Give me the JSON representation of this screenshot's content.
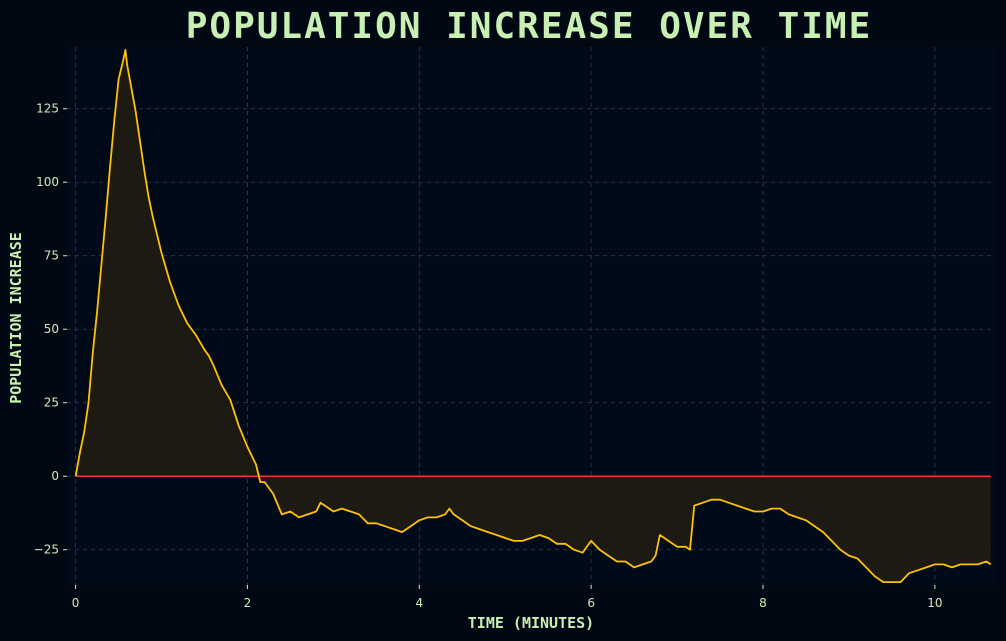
{
  "colors": {
    "background": "#000814",
    "plot_background": "#000a18",
    "grid": "#3a3f4a",
    "line": "#ffc107",
    "fill": "#1e1b12",
    "zero_line": "#e53935",
    "text": "#c8f0b4"
  },
  "chart_data": {
    "type": "area",
    "title": "POPULATION INCREASE OVER TIME",
    "xlabel": "TIME (MINUTES)",
    "ylabel": "POPULATION INCREASE",
    "xlim": [
      -0.1,
      10.7
    ],
    "ylim": [
      -37,
      146
    ],
    "xticks": [
      0,
      2,
      4,
      6,
      8,
      10
    ],
    "yticks": [
      -25,
      0,
      25,
      50,
      75,
      100,
      125
    ],
    "grid": true,
    "reference_line": 0,
    "series": [
      {
        "x": [
          0.0,
          0.05,
          0.1,
          0.15,
          0.2,
          0.25,
          0.3,
          0.35,
          0.4,
          0.45,
          0.5,
          0.55,
          0.58,
          0.6,
          0.65,
          0.7,
          0.75,
          0.8,
          0.85,
          0.9,
          0.95,
          1.0,
          1.1,
          1.2,
          1.3,
          1.4,
          1.5,
          1.55,
          1.6,
          1.7,
          1.8,
          1.9,
          2.0,
          2.1,
          2.15,
          2.2,
          2.3,
          2.4,
          2.5,
          2.6,
          2.7,
          2.8,
          2.85,
          2.9,
          3.0,
          3.1,
          3.2,
          3.3,
          3.4,
          3.5,
          3.6,
          3.7,
          3.8,
          3.9,
          4.0,
          4.1,
          4.2,
          4.3,
          4.35,
          4.4,
          4.5,
          4.6,
          4.7,
          4.8,
          4.9,
          5.0,
          5.1,
          5.2,
          5.3,
          5.4,
          5.5,
          5.6,
          5.7,
          5.8,
          5.9,
          6.0,
          6.1,
          6.2,
          6.3,
          6.4,
          6.5,
          6.6,
          6.7,
          6.75,
          6.8,
          6.9,
          7.0,
          7.1,
          7.15,
          7.2,
          7.3,
          7.4,
          7.5,
          7.6,
          7.7,
          7.8,
          7.9,
          8.0,
          8.1,
          8.2,
          8.3,
          8.4,
          8.5,
          8.6,
          8.7,
          8.8,
          8.9,
          9.0,
          9.1,
          9.2,
          9.3,
          9.4,
          9.5,
          9.6,
          9.7,
          9.8,
          9.9,
          10.0,
          10.1,
          10.2,
          10.3,
          10.4,
          10.5,
          10.6,
          10.65
        ],
        "y": [
          0,
          8,
          15,
          25,
          42,
          56,
          72,
          88,
          105,
          121,
          135,
          141,
          145,
          140,
          132,
          124,
          114,
          104,
          95,
          88,
          82,
          76,
          66,
          58,
          52,
          48,
          43,
          41,
          38,
          31,
          26,
          17,
          10,
          4,
          -2,
          -2,
          -6,
          -13,
          -12,
          -14,
          -13,
          -12,
          -9,
          -10,
          -12,
          -11,
          -12,
          -13,
          -16,
          -16,
          -17,
          -18,
          -19,
          -17,
          -15,
          -14,
          -14,
          -13,
          -11,
          -13,
          -15,
          -17,
          -18,
          -19,
          -20,
          -21,
          -22,
          -22,
          -21,
          -20,
          -21,
          -23,
          -23,
          -25,
          -26,
          -22,
          -25,
          -27,
          -29,
          -29,
          -31,
          -30,
          -29,
          -27,
          -20,
          -22,
          -24,
          -24,
          -25,
          -10,
          -9,
          -8,
          -8,
          -9,
          -10,
          -11,
          -12,
          -12,
          -11,
          -11,
          -13,
          -14,
          -15,
          -17,
          -19,
          -22,
          -25,
          -27,
          -28,
          -31,
          -34,
          -36,
          -36,
          -36,
          -33,
          -32,
          -31,
          -30,
          -30,
          -31,
          -30,
          -30,
          -30,
          -29,
          -30
        ]
      }
    ]
  }
}
